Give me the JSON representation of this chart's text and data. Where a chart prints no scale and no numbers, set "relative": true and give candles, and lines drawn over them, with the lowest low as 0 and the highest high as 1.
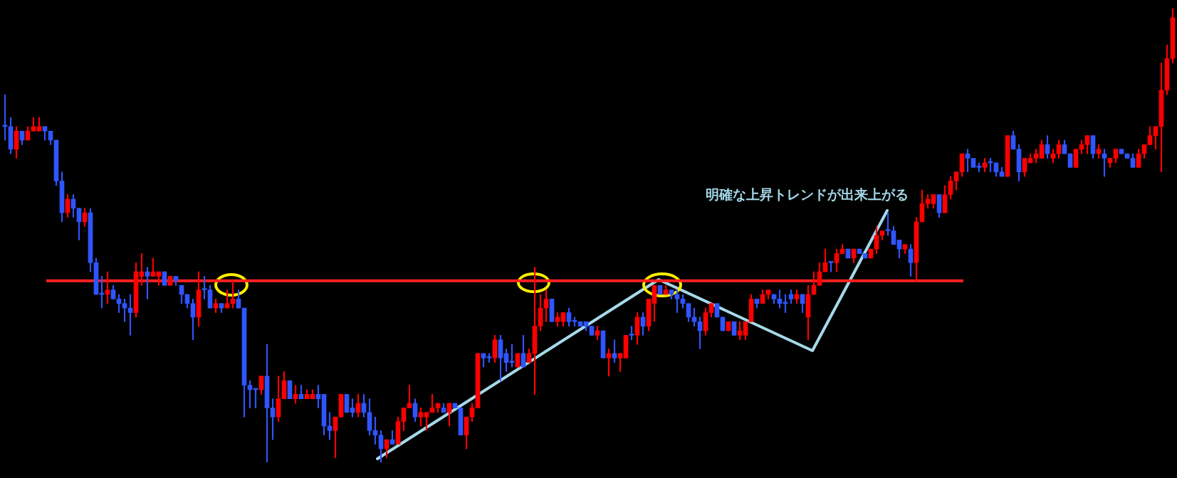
{
  "chart_data": {
    "type": "candlestick",
    "relative": true,
    "annotations": [
      "明確な上昇トレンドが出来上がる"
    ],
    "ref_lines": [
      {
        "axis": "y",
        "value": 0.4,
        "color": "#ff2020"
      }
    ],
    "categories": [
      null,
      null,
      null,
      null,
      null,
      null,
      null,
      null,
      null,
      null,
      null,
      null,
      null,
      null,
      null,
      null,
      null,
      null,
      null,
      null,
      null,
      null,
      null,
      null,
      null,
      null,
      null,
      null,
      null,
      null,
      null,
      null,
      null,
      null,
      null,
      null,
      null,
      null,
      null,
      null,
      null,
      null,
      null,
      null,
      null,
      null,
      null,
      null,
      null,
      null,
      null,
      null,
      null,
      null,
      null,
      null,
      null,
      null,
      null,
      null,
      null,
      null,
      null,
      null,
      null,
      null,
      null,
      null,
      null,
      null,
      null,
      null,
      null,
      null,
      null,
      null,
      null,
      null,
      null,
      null,
      null,
      null,
      null,
      null,
      null,
      null,
      null,
      null,
      null,
      null,
      null,
      null,
      null,
      null,
      null,
      null,
      null,
      null,
      null,
      null,
      null,
      null,
      null,
      null,
      null,
      null,
      null,
      null,
      null,
      null,
      null,
      null,
      null,
      null,
      null,
      null,
      null,
      null,
      null,
      null,
      null,
      null,
      null,
      null,
      null,
      null,
      null,
      null,
      null,
      null,
      null,
      null,
      null,
      null,
      null,
      null,
      null,
      null,
      null,
      null,
      null,
      null,
      null,
      null,
      null,
      null,
      null,
      null,
      null,
      null,
      null,
      null,
      null,
      null,
      null,
      null,
      null,
      null,
      null,
      null,
      null,
      null,
      null,
      null,
      null,
      null,
      null,
      null,
      null,
      null,
      null,
      null,
      null,
      null,
      null,
      null,
      null,
      null,
      null,
      null,
      null,
      null,
      null,
      null,
      null,
      null,
      null,
      null,
      null,
      null,
      null,
      null,
      null,
      null,
      null,
      null,
      null,
      null,
      null,
      null,
      null,
      null,
      null,
      null,
      null,
      null
    ],
    "ohlc": [
      [
        0.74,
        0.81,
        0.71,
        0.74
      ],
      [
        0.74,
        0.76,
        0.68,
        0.69
      ],
      [
        0.69,
        0.74,
        0.67,
        0.73
      ],
      [
        0.73,
        0.73,
        0.7,
        0.71
      ],
      [
        0.71,
        0.74,
        0.71,
        0.73
      ],
      [
        0.73,
        0.76,
        0.73,
        0.74
      ],
      [
        0.73,
        0.76,
        0.73,
        0.74
      ],
      [
        0.74,
        0.74,
        0.71,
        0.73
      ],
      [
        0.73,
        0.73,
        0.7,
        0.71
      ],
      [
        0.71,
        0.71,
        0.61,
        0.62
      ],
      [
        0.62,
        0.64,
        0.53,
        0.55
      ],
      [
        0.55,
        0.59,
        0.54,
        0.58
      ],
      [
        0.58,
        0.59,
        0.54,
        0.56
      ],
      [
        0.56,
        0.56,
        0.49,
        0.53
      ],
      [
        0.53,
        0.56,
        0.52,
        0.55
      ],
      [
        0.55,
        0.56,
        0.42,
        0.44
      ],
      [
        0.44,
        0.45,
        0.37,
        0.37
      ],
      [
        0.37,
        0.41,
        0.34,
        0.37
      ],
      [
        0.37,
        0.42,
        0.35,
        0.38
      ],
      [
        0.38,
        0.39,
        0.36,
        0.36
      ],
      [
        0.36,
        0.37,
        0.33,
        0.35
      ],
      [
        0.35,
        0.36,
        0.31,
        0.34
      ],
      [
        0.34,
        0.37,
        0.28,
        0.33
      ],
      [
        0.33,
        0.44,
        0.32,
        0.42
      ],
      [
        0.41,
        0.46,
        0.39,
        0.42
      ],
      [
        0.42,
        0.43,
        0.36,
        0.41
      ],
      [
        0.41,
        0.45,
        0.41,
        0.42
      ],
      [
        0.41,
        0.42,
        0.39,
        0.42
      ],
      [
        0.42,
        0.42,
        0.39,
        0.39
      ],
      [
        0.39,
        0.41,
        0.39,
        0.41
      ],
      [
        0.41,
        0.41,
        0.39,
        0.4
      ],
      [
        0.39,
        0.39,
        0.35,
        0.37
      ],
      [
        0.37,
        0.37,
        0.34,
        0.35
      ],
      [
        0.35,
        0.36,
        0.27,
        0.32
      ],
      [
        0.32,
        0.42,
        0.3,
        0.38
      ],
      [
        0.38,
        0.41,
        0.36,
        0.38
      ],
      [
        0.38,
        0.39,
        0.34,
        0.34
      ],
      [
        0.34,
        0.36,
        0.33,
        0.35
      ],
      [
        0.35,
        0.35,
        0.33,
        0.34
      ],
      [
        0.34,
        0.38,
        0.34,
        0.35
      ],
      [
        0.35,
        0.4,
        0.34,
        0.36
      ],
      [
        0.36,
        0.38,
        0.34,
        0.34
      ],
      [
        0.34,
        0.34,
        0.1,
        0.17
      ],
      [
        0.17,
        0.18,
        0.12,
        0.16
      ],
      [
        0.16,
        0.16,
        0.12,
        0.16
      ],
      [
        0.16,
        0.19,
        0.15,
        0.19
      ],
      [
        0.19,
        0.26,
        0,
        0.12
      ],
      [
        0.12,
        0.14,
        0.05,
        0.1
      ],
      [
        0.1,
        0.19,
        0.09,
        0.14
      ],
      [
        0.14,
        0.2,
        0.14,
        0.18
      ],
      [
        0.18,
        0.18,
        0.14,
        0.14
      ],
      [
        0.14,
        0.17,
        0.13,
        0.15
      ],
      [
        0.15,
        0.17,
        0.14,
        0.14
      ],
      [
        0.14,
        0.16,
        0.14,
        0.15
      ],
      [
        0.14,
        0.16,
        0.14,
        0.15
      ],
      [
        0.15,
        0.17,
        0.12,
        0.14
      ],
      [
        0.15,
        0.15,
        0.06,
        0.08
      ],
      [
        0.08,
        0.11,
        0.05,
        0.07
      ],
      [
        0.07,
        0.1,
        0.01,
        0.1
      ],
      [
        0.1,
        0.15,
        0.1,
        0.15
      ],
      [
        0.15,
        0.15,
        0.11,
        0.11
      ],
      [
        0.12,
        0.14,
        0.1,
        0.11
      ],
      [
        0.11,
        0.15,
        0.1,
        0.13
      ],
      [
        0.13,
        0.15,
        0.1,
        0.11
      ],
      [
        0.11,
        0.14,
        0.06,
        0.07
      ],
      [
        0.07,
        0.1,
        0.04,
        0.06
      ],
      [
        0.06,
        0.07,
        0,
        0.03
      ],
      [
        0.03,
        0.05,
        0.01,
        0.05
      ],
      [
        0.05,
        0.07,
        0.04,
        0.04
      ],
      [
        0.04,
        0.1,
        0.04,
        0.09
      ],
      [
        0.09,
        0.12,
        0.07,
        0.12
      ],
      [
        0.12,
        0.17,
        0.12,
        0.13
      ],
      [
        0.13,
        0.14,
        0.09,
        0.1
      ],
      [
        0.1,
        0.12,
        0.08,
        0.11
      ],
      [
        0.1,
        0.11,
        0.07,
        0.11
      ],
      [
        0.11,
        0.15,
        0.11,
        0.12
      ],
      [
        0.12,
        0.13,
        0.11,
        0.13
      ],
      [
        0.12,
        0.13,
        0.11,
        0.11
      ],
      [
        0.11,
        0.13,
        0.08,
        0.13
      ],
      [
        0.13,
        0.13,
        0.12,
        0.12
      ],
      [
        0.12,
        0.12,
        0.06,
        0.06
      ],
      [
        0.06,
        0.1,
        0.03,
        0.1
      ],
      [
        0.1,
        0.13,
        0.09,
        0.12
      ],
      [
        0.12,
        0.24,
        0.12,
        0.24
      ],
      [
        0.24,
        0.24,
        0.21,
        0.23
      ],
      [
        0.23,
        0.24,
        0.22,
        0.23
      ],
      [
        0.23,
        0.28,
        0.22,
        0.27
      ],
      [
        0.27,
        0.28,
        0.18,
        0.23
      ],
      [
        0.24,
        0.25,
        0.2,
        0.22
      ],
      [
        0.22,
        0.26,
        0.21,
        0.22
      ],
      [
        0.21,
        0.24,
        0.21,
        0.24
      ],
      [
        0.24,
        0.28,
        0.21,
        0.21
      ],
      [
        0.22,
        0.25,
        0.22,
        0.24
      ],
      [
        0.24,
        0.43,
        0.15,
        0.3
      ],
      [
        0.3,
        0.37,
        0.29,
        0.34
      ],
      [
        0.34,
        0.38,
        0.31,
        0.36
      ],
      [
        0.36,
        0.36,
        0.31,
        0.31
      ],
      [
        0.31,
        0.33,
        0.3,
        0.32
      ],
      [
        0.31,
        0.33,
        0.3,
        0.33
      ],
      [
        0.33,
        0.34,
        0.3,
        0.31
      ],
      [
        0.31,
        0.32,
        0.3,
        0.31
      ],
      [
        0.31,
        0.31,
        0.3,
        0.3
      ],
      [
        0.31,
        0.31,
        0.29,
        0.3
      ],
      [
        0.3,
        0.3,
        0.28,
        0.28
      ],
      [
        0.28,
        0.3,
        0.27,
        0.29
      ],
      [
        0.29,
        0.29,
        0.23,
        0.23
      ],
      [
        0.23,
        0.25,
        0.19,
        0.24
      ],
      [
        0.24,
        0.27,
        0.22,
        0.23
      ],
      [
        0.23,
        0.24,
        0.2,
        0.24
      ],
      [
        0.23,
        0.28,
        0.23,
        0.28
      ],
      [
        0.28,
        0.3,
        0.27,
        0.28
      ],
      [
        0.28,
        0.33,
        0.26,
        0.32
      ],
      [
        0.32,
        0.33,
        0.28,
        0.3
      ],
      [
        0.3,
        0.36,
        0.29,
        0.36
      ],
      [
        0.35,
        0.39,
        0.31,
        0.39
      ],
      [
        0.39,
        0.39,
        0.37,
        0.37
      ],
      [
        0.37,
        0.39,
        0.37,
        0.38
      ],
      [
        0.38,
        0.38,
        0.36,
        0.37
      ],
      [
        0.37,
        0.38,
        0.33,
        0.36
      ],
      [
        0.36,
        0.37,
        0.34,
        0.35
      ],
      [
        0.35,
        0.35,
        0.31,
        0.32
      ],
      [
        0.32,
        0.34,
        0.3,
        0.31
      ],
      [
        0.31,
        0.32,
        0.25,
        0.29
      ],
      [
        0.29,
        0.34,
        0.28,
        0.33
      ],
      [
        0.33,
        0.35,
        0.32,
        0.35
      ],
      [
        0.35,
        0.35,
        0.32,
        0.32
      ],
      [
        0.32,
        0.32,
        0.29,
        0.29
      ],
      [
        0.29,
        0.31,
        0.29,
        0.31
      ],
      [
        0.31,
        0.31,
        0.28,
        0.28
      ],
      [
        0.28,
        0.31,
        0.27,
        0.29
      ],
      [
        0.28,
        0.31,
        0.27,
        0.31
      ],
      [
        0.31,
        0.37,
        0.31,
        0.36
      ],
      [
        0.36,
        0.36,
        0.34,
        0.35
      ],
      [
        0.35,
        0.38,
        0.35,
        0.37
      ],
      [
        0.37,
        0.38,
        0.36,
        0.38
      ],
      [
        0.37,
        0.37,
        0.35,
        0.36
      ],
      [
        0.36,
        0.38,
        0.34,
        0.35
      ],
      [
        0.35,
        0.37,
        0.33,
        0.35
      ],
      [
        0.37,
        0.38,
        0.35,
        0.36
      ],
      [
        0.36,
        0.38,
        0.35,
        0.37
      ],
      [
        0.37,
        0.37,
        0.33,
        0.35
      ],
      [
        0.32,
        0.39,
        0.27,
        0.37
      ],
      [
        0.37,
        0.42,
        0.37,
        0.39
      ],
      [
        0.39,
        0.44,
        0.39,
        0.42
      ],
      [
        0.42,
        0.47,
        0.42,
        0.44
      ],
      [
        0.44,
        0.44,
        0.42,
        0.44
      ],
      [
        0.44,
        0.47,
        0.42,
        0.46
      ],
      [
        0.46,
        0.48,
        0.46,
        0.47
      ],
      [
        0.47,
        0.47,
        0.45,
        0.45
      ],
      [
        0.45,
        0.47,
        0.44,
        0.47
      ],
      [
        0.47,
        0.47,
        0.46,
        0.46
      ],
      [
        0.46,
        0.46,
        0.45,
        0.45
      ],
      [
        0.45,
        0.47,
        0.45,
        0.47
      ],
      [
        0.47,
        0.52,
        0.46,
        0.5
      ],
      [
        0.5,
        0.51,
        0.49,
        0.51
      ],
      [
        0.51,
        0.55,
        0.5,
        0.51
      ],
      [
        0.51,
        0.52,
        0.48,
        0.48
      ],
      [
        0.49,
        0.49,
        0.45,
        0.47
      ],
      [
        0.47,
        0.48,
        0.46,
        0.48
      ],
      [
        0.47,
        0.48,
        0.41,
        0.44
      ],
      [
        0.44,
        0.54,
        0.4,
        0.53
      ],
      [
        0.53,
        0.6,
        0.53,
        0.57
      ],
      [
        0.57,
        0.59,
        0.56,
        0.58
      ],
      [
        0.57,
        0.59,
        0.56,
        0.59
      ],
      [
        0.59,
        0.59,
        0.54,
        0.55
      ],
      [
        0.55,
        0.61,
        0.55,
        0.59
      ],
      [
        0.59,
        0.63,
        0.58,
        0.62
      ],
      [
        0.62,
        0.64,
        0.6,
        0.64
      ],
      [
        0.64,
        0.68,
        0.63,
        0.68
      ],
      [
        0.68,
        0.69,
        0.64,
        0.67
      ],
      [
        0.67,
        0.67,
        0.65,
        0.65
      ],
      [
        0.65,
        0.66,
        0.64,
        0.65
      ],
      [
        0.65,
        0.67,
        0.64,
        0.66
      ],
      [
        0.66,
        0.67,
        0.64,
        0.66
      ],
      [
        0.66,
        0.66,
        0.63,
        0.64
      ],
      [
        0.64,
        0.65,
        0.63,
        0.63
      ],
      [
        0.63,
        0.72,
        0.63,
        0.72
      ],
      [
        0.72,
        0.73,
        0.69,
        0.69
      ],
      [
        0.69,
        0.7,
        0.62,
        0.64
      ],
      [
        0.64,
        0.67,
        0.63,
        0.67
      ],
      [
        0.66,
        0.68,
        0.66,
        0.67
      ],
      [
        0.67,
        0.69,
        0.66,
        0.68
      ],
      [
        0.67,
        0.71,
        0.67,
        0.7
      ],
      [
        0.7,
        0.72,
        0.67,
        0.68
      ],
      [
        0.67,
        0.69,
        0.66,
        0.68
      ],
      [
        0.68,
        0.71,
        0.67,
        0.7
      ],
      [
        0.7,
        0.71,
        0.68,
        0.68
      ],
      [
        0.68,
        0.68,
        0.65,
        0.65
      ],
      [
        0.65,
        0.69,
        0.65,
        0.69
      ],
      [
        0.69,
        0.71,
        0.68,
        0.7
      ],
      [
        0.7,
        0.72,
        0.68,
        0.72
      ],
      [
        0.72,
        0.72,
        0.67,
        0.68
      ],
      [
        0.68,
        0.7,
        0.67,
        0.69
      ],
      [
        0.68,
        0.69,
        0.63,
        0.67
      ],
      [
        0.66,
        0.67,
        0.65,
        0.67
      ],
      [
        0.67,
        0.69,
        0.66,
        0.69
      ],
      [
        0.69,
        0.69,
        0.68,
        0.68
      ],
      [
        0.68,
        0.68,
        0.67,
        0.67
      ],
      [
        0.67,
        0.68,
        0.65,
        0.65
      ],
      [
        0.65,
        0.69,
        0.65,
        0.68
      ],
      [
        0.68,
        0.7,
        0.67,
        0.7
      ],
      [
        0.7,
        0.74,
        0.7,
        0.72
      ],
      [
        0.72,
        0.74,
        0.69,
        0.74
      ],
      [
        0.74,
        0.88,
        0.64,
        0.82
      ],
      [
        0.82,
        0.92,
        0.81,
        0.89
      ],
      [
        0.89,
        1,
        0.88,
        0.98
      ]
    ],
    "legend": false
  }
}
